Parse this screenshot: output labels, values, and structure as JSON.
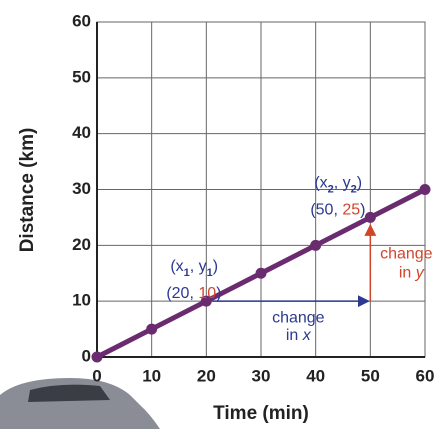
{
  "chart_data": {
    "type": "line",
    "x_label": "Time (min)",
    "y_label": "Distance (km)",
    "xlim": [
      0,
      60
    ],
    "ylim": [
      0,
      60
    ],
    "xticks": [
      0,
      10,
      20,
      30,
      40,
      50,
      60
    ],
    "yticks": [
      0,
      10,
      20,
      30,
      40,
      50,
      60
    ],
    "grid": true,
    "series": [
      {
        "color": "#6a2c6e",
        "x": [
          0,
          10,
          20,
          30,
          40,
          50,
          60
        ],
        "values": [
          0,
          5,
          10,
          15,
          20,
          25,
          30
        ]
      }
    ],
    "x_color": "#2b3990",
    "y_color": "#d1452b",
    "point_labels": [
      {
        "symbol": [
          "(x",
          "1",
          ", y",
          "1",
          ")"
        ],
        "coords": [
          "(20, ",
          "10",
          ")"
        ]
      },
      {
        "symbol": [
          "(x",
          "2",
          ", y",
          "2",
          ")"
        ],
        "coords": [
          "(50, ",
          "25",
          ")"
        ]
      }
    ],
    "change_x": [
      "change",
      "in ",
      "x"
    ],
    "change_y": [
      "change",
      "in ",
      "y"
    ]
  }
}
